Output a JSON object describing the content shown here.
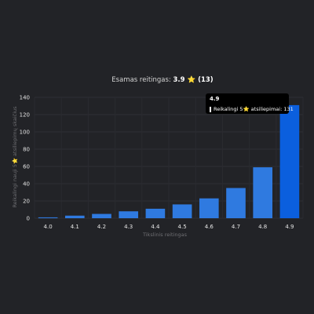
{
  "chart_data": {
    "type": "bar",
    "title_prefix": "Esamas reitingas:",
    "title_value": "3.9 ⭐ (13)",
    "xlabel": "Tikslinis reitingas",
    "ylabel": "Reikalingi nauji 5⭐ atsiliepimų skaičius",
    "categories": [
      "4.0",
      "4.1",
      "4.2",
      "4.3",
      "4.4",
      "4.5",
      "4.6",
      "4.7",
      "4.8",
      "4.9"
    ],
    "series": [
      {
        "name": "Reikalingi 5⭐ atsiliepimai",
        "values": [
          1,
          3,
          5,
          8,
          11,
          16,
          23,
          35,
          59,
          131
        ]
      }
    ],
    "ylim": [
      0,
      140
    ],
    "yticks": [
      0,
      20,
      40,
      60,
      80,
      100,
      120,
      140
    ],
    "grid": true,
    "legend": "none",
    "bar_color": "#2f7ae0",
    "highlight_color": "#0b5fde",
    "highlight_index": 9
  },
  "tooltip": {
    "title": "4.9",
    "text": "Reikalingi 5⭐ atsiliepimai: 131"
  }
}
